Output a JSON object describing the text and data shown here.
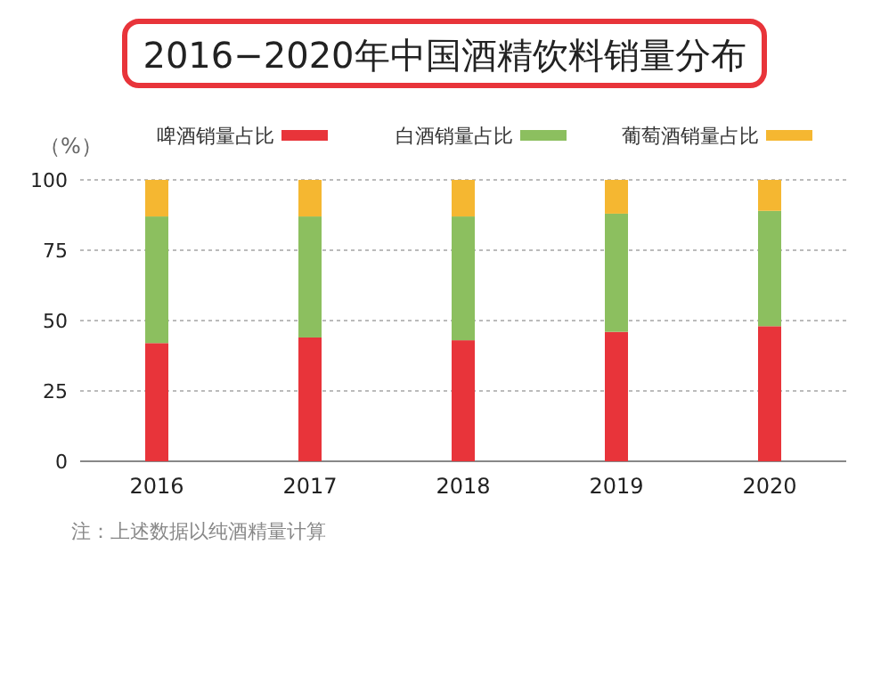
{
  "chart_data": {
    "type": "bar",
    "title": "2016−2020年中国酒精饮料销量分布",
    "ylabel": "（%）",
    "categories": [
      "2016",
      "2017",
      "2018",
      "2019",
      "2020"
    ],
    "series": [
      {
        "name": "啤酒销量占比",
        "color": "#e8343a",
        "values": [
          42,
          44,
          43,
          46,
          48
        ]
      },
      {
        "name": "白酒销量占比",
        "color": "#8cbf5f",
        "values": [
          45,
          43,
          44,
          42,
          41
        ]
      },
      {
        "name": "葡萄酒销量占比",
        "color": "#f5b731",
        "values": [
          13,
          13,
          13,
          12,
          11
        ]
      }
    ],
    "stacked": true,
    "ylim": [
      0,
      100
    ],
    "yticks": [
      0,
      25,
      50,
      75,
      100
    ],
    "grid": "y",
    "legend": "top",
    "annotations": [
      "注：上述数据以纯酒精量计算"
    ]
  }
}
